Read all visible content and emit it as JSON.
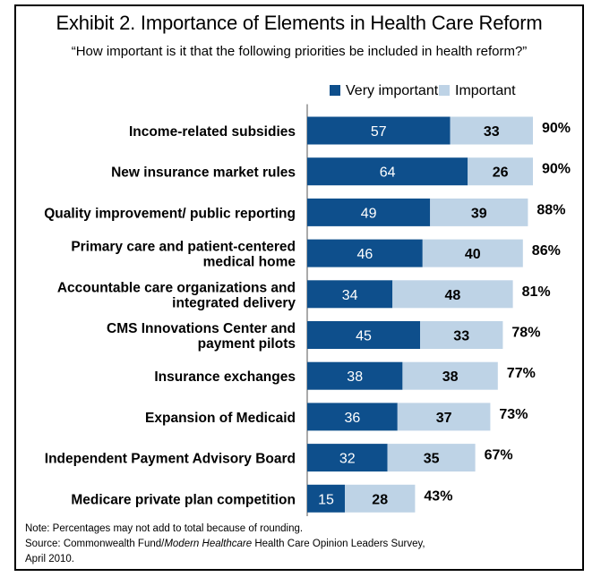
{
  "title": "Exhibit 2. Importance of Elements in Health Care Reform",
  "subtitle": "“How important is it that the following priorities be included in health reform?”",
  "notes": {
    "note": "Note: Percentages may not add to total because of rounding.",
    "source_prefix": "Source: Commonwealth Fund/",
    "source_italic": "Modern Healthcare",
    "source_suffix": " Health Care Opinion Leaders Survey,",
    "source_date": "April 2010."
  },
  "colors": {
    "very_important": "#0e4f8c",
    "important": "#bed3e6"
  },
  "chart_data": {
    "type": "bar",
    "orientation": "horizontal",
    "stacked": true,
    "categories": [
      [
        "Income-related subsidies"
      ],
      [
        "New insurance market rules"
      ],
      [
        "Quality improvement/ public reporting"
      ],
      [
        "Primary care and patient-centered",
        "medical home"
      ],
      [
        "Accountable care organizations and",
        "integrated delivery"
      ],
      [
        "CMS Innovations Center and",
        "payment pilots"
      ],
      [
        "Insurance exchanges"
      ],
      [
        "Expansion of Medicaid"
      ],
      [
        "Independent Payment Advisory Board"
      ],
      [
        "Medicare private plan competition"
      ]
    ],
    "series": [
      {
        "name": "Very important",
        "values": [
          57,
          64,
          49,
          46,
          34,
          45,
          38,
          36,
          32,
          15
        ]
      },
      {
        "name": "Important",
        "values": [
          33,
          26,
          39,
          40,
          48,
          33,
          38,
          37,
          35,
          28
        ]
      }
    ],
    "totals": [
      "90%",
      "90%",
      "88%",
      "86%",
      "81%",
      "78%",
      "77%",
      "73%",
      "67%",
      "43%"
    ],
    "legend_position": "top-right",
    "grid": false
  }
}
